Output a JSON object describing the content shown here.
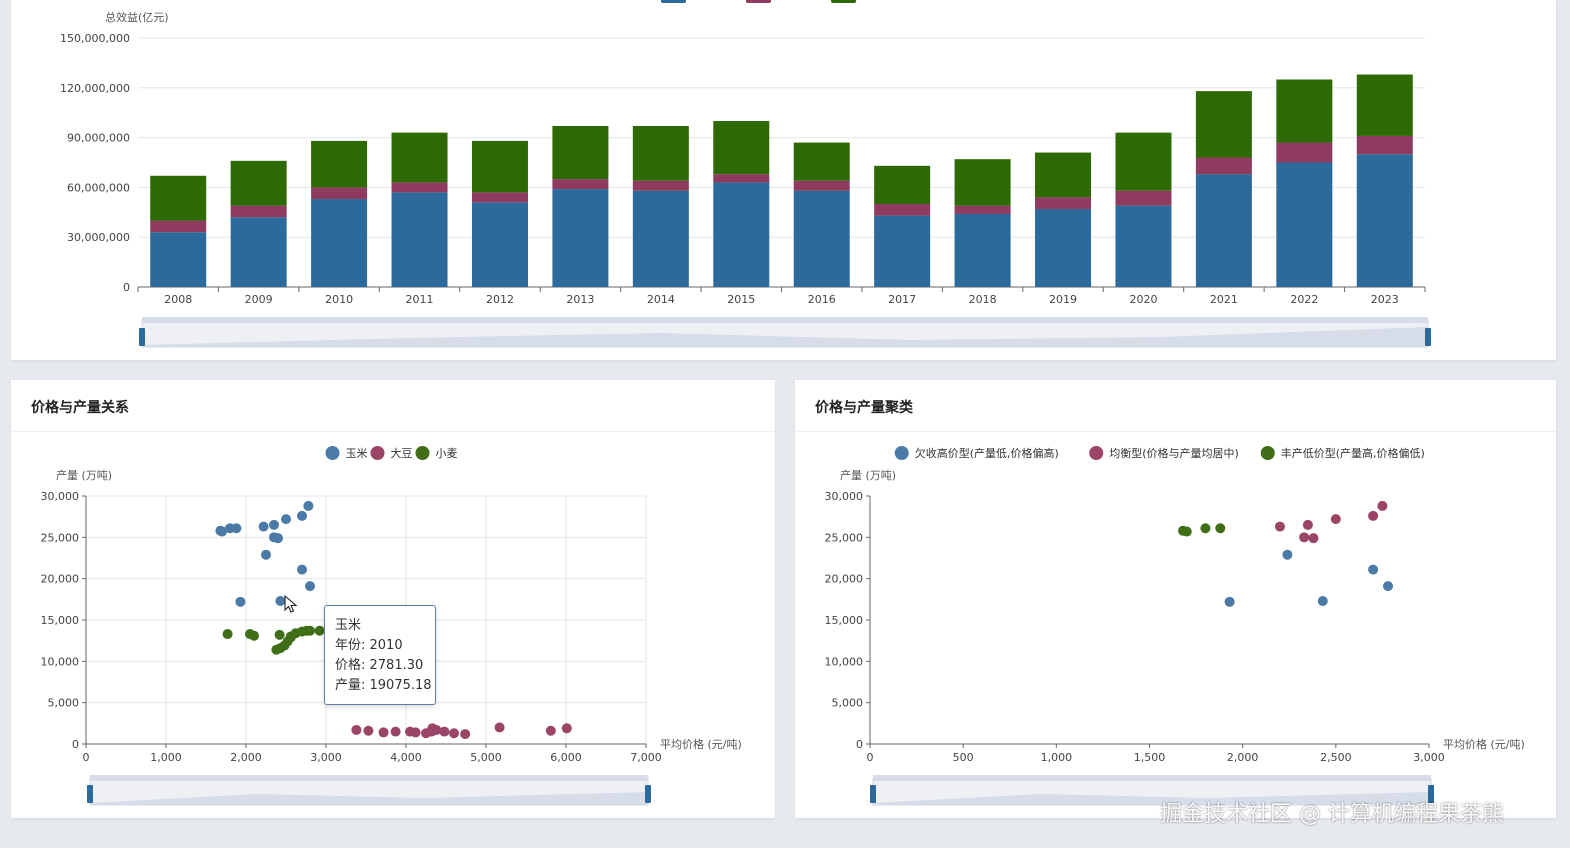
{
  "top_chart": {
    "legend_colors": [
      "#2b6a9b",
      "#8e3b5f",
      "#2e6a04"
    ],
    "chart_data": {
      "type": "bar",
      "stacked": true,
      "ylabel": "总效益(亿元)",
      "ylim": [
        0,
        150000000
      ],
      "yticks": [
        0,
        30000000,
        60000000,
        90000000,
        120000000,
        150000000
      ],
      "ytick_labels": [
        "0",
        "30,000,000",
        "60,000,000",
        "90,000,000",
        "120,000,000",
        "150,000,000"
      ],
      "categories": [
        "2008",
        "2009",
        "2010",
        "2011",
        "2012",
        "2013",
        "2014",
        "2015",
        "2016",
        "2017",
        "2018",
        "2019",
        "2020",
        "2021",
        "2022",
        "2023"
      ],
      "series": [
        {
          "color": "#2b6a9b",
          "values": [
            33000000,
            42000000,
            53000000,
            57000000,
            51000000,
            59000000,
            58000000,
            63000000,
            58000000,
            43000000,
            44000000,
            47000000,
            49000000,
            68000000,
            75000000,
            80000000
          ]
        },
        {
          "color": "#8e3b5f",
          "values": [
            7000000,
            7000000,
            7000000,
            6000000,
            6000000,
            6000000,
            6000000,
            5000000,
            6000000,
            7000000,
            5000000,
            7000000,
            9000000,
            10000000,
            12000000,
            11000000
          ]
        },
        {
          "color": "#2e6a04",
          "values": [
            27000000,
            27000000,
            28000000,
            30000000,
            31000000,
            32000000,
            33000000,
            32000000,
            23000000,
            23000000,
            28000000,
            27000000,
            35000000,
            40000000,
            38000000,
            37000000
          ]
        }
      ],
      "grid": true
    }
  },
  "scatter_left": {
    "title": "价格与产量关系",
    "legend": [
      {
        "label": "玉米",
        "color": "#4a7aa5"
      },
      {
        "label": "大豆",
        "color": "#9a4466"
      },
      {
        "label": "小麦",
        "color": "#3f6e16"
      }
    ],
    "chart_data": {
      "type": "scatter",
      "xlabel": "平均价格 (元/吨)",
      "ylabel": "产量 (万吨)",
      "xlim": [
        0,
        7000
      ],
      "ylim": [
        0,
        30000
      ],
      "xticks": [
        0,
        1000,
        2000,
        3000,
        4000,
        5000,
        6000,
        7000
      ],
      "xtick_labels": [
        "0",
        "1,000",
        "2,000",
        "3,000",
        "4,000",
        "5,000",
        "6,000",
        "7,000"
      ],
      "yticks": [
        0,
        5000,
        10000,
        15000,
        20000,
        25000,
        30000
      ],
      "ytick_labels": [
        "0",
        "5,000",
        "10,000",
        "15,000",
        "20,000",
        "25,000",
        "30,000"
      ],
      "series": [
        {
          "name": "玉米",
          "color": "#4a7aa5",
          "points": [
            [
              1680,
              25800
            ],
            [
              1700,
              25700
            ],
            [
              1800,
              26100
            ],
            [
              1880,
              26100
            ],
            [
              2220,
              26300
            ],
            [
              2350,
              26500
            ],
            [
              2350,
              25000
            ],
            [
              2400,
              24900
            ],
            [
              2500,
              27200
            ],
            [
              2700,
              27600
            ],
            [
              2780,
              28800
            ],
            [
              2250,
              22900
            ],
            [
              2700,
              21100
            ],
            [
              2800,
              19100
            ],
            [
              1930,
              17200
            ],
            [
              2430,
              17300
            ]
          ]
        },
        {
          "name": "大豆",
          "color": "#9a4466",
          "points": [
            [
              3380,
              1700
            ],
            [
              3530,
              1600
            ],
            [
              3720,
              1400
            ],
            [
              3870,
              1500
            ],
            [
              4050,
              1500
            ],
            [
              4120,
              1400
            ],
            [
              4250,
              1300
            ],
            [
              4320,
              1500
            ],
            [
              4330,
              1900
            ],
            [
              4380,
              1700
            ],
            [
              4480,
              1500
            ],
            [
              4600,
              1300
            ],
            [
              4740,
              1200
            ],
            [
              5170,
              2000
            ],
            [
              5810,
              1600
            ],
            [
              6010,
              1900
            ]
          ]
        },
        {
          "name": "小麦",
          "color": "#3f6e16",
          "points": [
            [
              1770,
              13300
            ],
            [
              2050,
              13300
            ],
            [
              2100,
              13100
            ],
            [
              2380,
              11400
            ],
            [
              2430,
              11600
            ],
            [
              2480,
              11900
            ],
            [
              2520,
              12400
            ],
            [
              2560,
              12900
            ],
            [
              2620,
              13400
            ],
            [
              2700,
              13600
            ],
            [
              2760,
              13700
            ],
            [
              2800,
              13700
            ],
            [
              2920,
              13700
            ],
            [
              2420,
              13200
            ],
            [
              2560,
              13000
            ]
          ]
        }
      ],
      "grid": true
    },
    "tooltip": {
      "name": "玉米",
      "year": "年份: 2010",
      "price": "价格: 2781.30",
      "output": "产量: 19075.18"
    }
  },
  "scatter_right": {
    "title": "价格与产量聚类",
    "legend": [
      {
        "label": "欠收高价型(产量低,价格偏高)",
        "color": "#4a7aa5"
      },
      {
        "label": "均衡型(价格与产量均居中)",
        "color": "#9a4466"
      },
      {
        "label": "丰产低价型(产量高,价格偏低)",
        "color": "#3f6e16"
      }
    ],
    "chart_data": {
      "type": "scatter",
      "xlabel": "平均价格 (元/吨)",
      "ylabel": "产量 (万吨)",
      "xlim": [
        0,
        3000
      ],
      "ylim": [
        0,
        30000
      ],
      "xticks": [
        0,
        500,
        1000,
        1500,
        2000,
        2500,
        3000
      ],
      "xtick_labels": [
        "0",
        "500",
        "1,000",
        "1,500",
        "2,000",
        "2,500",
        "3,000"
      ],
      "yticks": [
        0,
        5000,
        10000,
        15000,
        20000,
        25000,
        30000
      ],
      "ytick_labels": [
        "0",
        "5,000",
        "10,000",
        "15,000",
        "20,000",
        "25,000",
        "30,000"
      ],
      "series": [
        {
          "name": "欠收高价型(产量低,价格偏高)",
          "color": "#4a7aa5",
          "points": [
            [
              1930,
              17200
            ],
            [
              2240,
              22900
            ],
            [
              2430,
              17300
            ],
            [
              2700,
              21100
            ],
            [
              2780,
              19100
            ]
          ]
        },
        {
          "name": "均衡型(价格与产量均居中)",
          "color": "#9a4466",
          "points": [
            [
              2200,
              26300
            ],
            [
              2330,
              25000
            ],
            [
              2350,
              26500
            ],
            [
              2380,
              24900
            ],
            [
              2500,
              27200
            ],
            [
              2700,
              27600
            ],
            [
              2750,
              28800
            ]
          ]
        },
        {
          "name": "丰产低价型(产量高,价格偏低)",
          "color": "#3f6e16",
          "points": [
            [
              1680,
              25800
            ],
            [
              1700,
              25700
            ],
            [
              1800,
              26100
            ],
            [
              1880,
              26100
            ]
          ]
        }
      ],
      "grid": false
    }
  },
  "watermark": "掘金技术社区 @ 计算机编程果茶熊"
}
